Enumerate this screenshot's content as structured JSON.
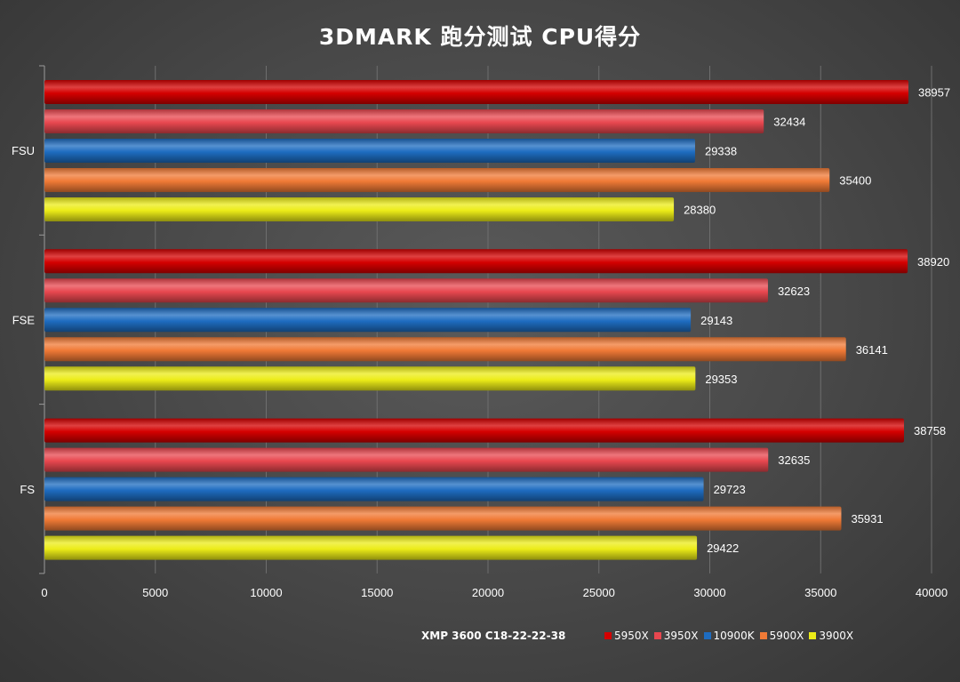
{
  "chart_data": {
    "type": "bar",
    "orientation": "horizontal",
    "title": "3DMARK 跑分测试 CPU得分",
    "note": "XMP 3600 C18-22-22-38",
    "categories": [
      "FSU",
      "FSE",
      "FS"
    ],
    "series": [
      {
        "name": "5950X",
        "color": "#d40000",
        "values": [
          38957,
          38920,
          38758
        ]
      },
      {
        "name": "3950X",
        "color": "#e8474f",
        "values": [
          32434,
          32623,
          32635
        ]
      },
      {
        "name": "10900K",
        "color": "#1e6cc0",
        "values": [
          29338,
          29143,
          29723
        ]
      },
      {
        "name": "5900X",
        "color": "#f07a36",
        "values": [
          35400,
          36141,
          35931
        ]
      },
      {
        "name": "3900X",
        "color": "#ecec18",
        "values": [
          28380,
          29353,
          29422
        ]
      }
    ],
    "xlim": [
      0,
      40000
    ],
    "xticks": [
      "0",
      "5000",
      "10000",
      "15000",
      "20000",
      "25000",
      "30000",
      "35000",
      "40000"
    ],
    "grid": true,
    "legend_position": "bottom-right"
  }
}
